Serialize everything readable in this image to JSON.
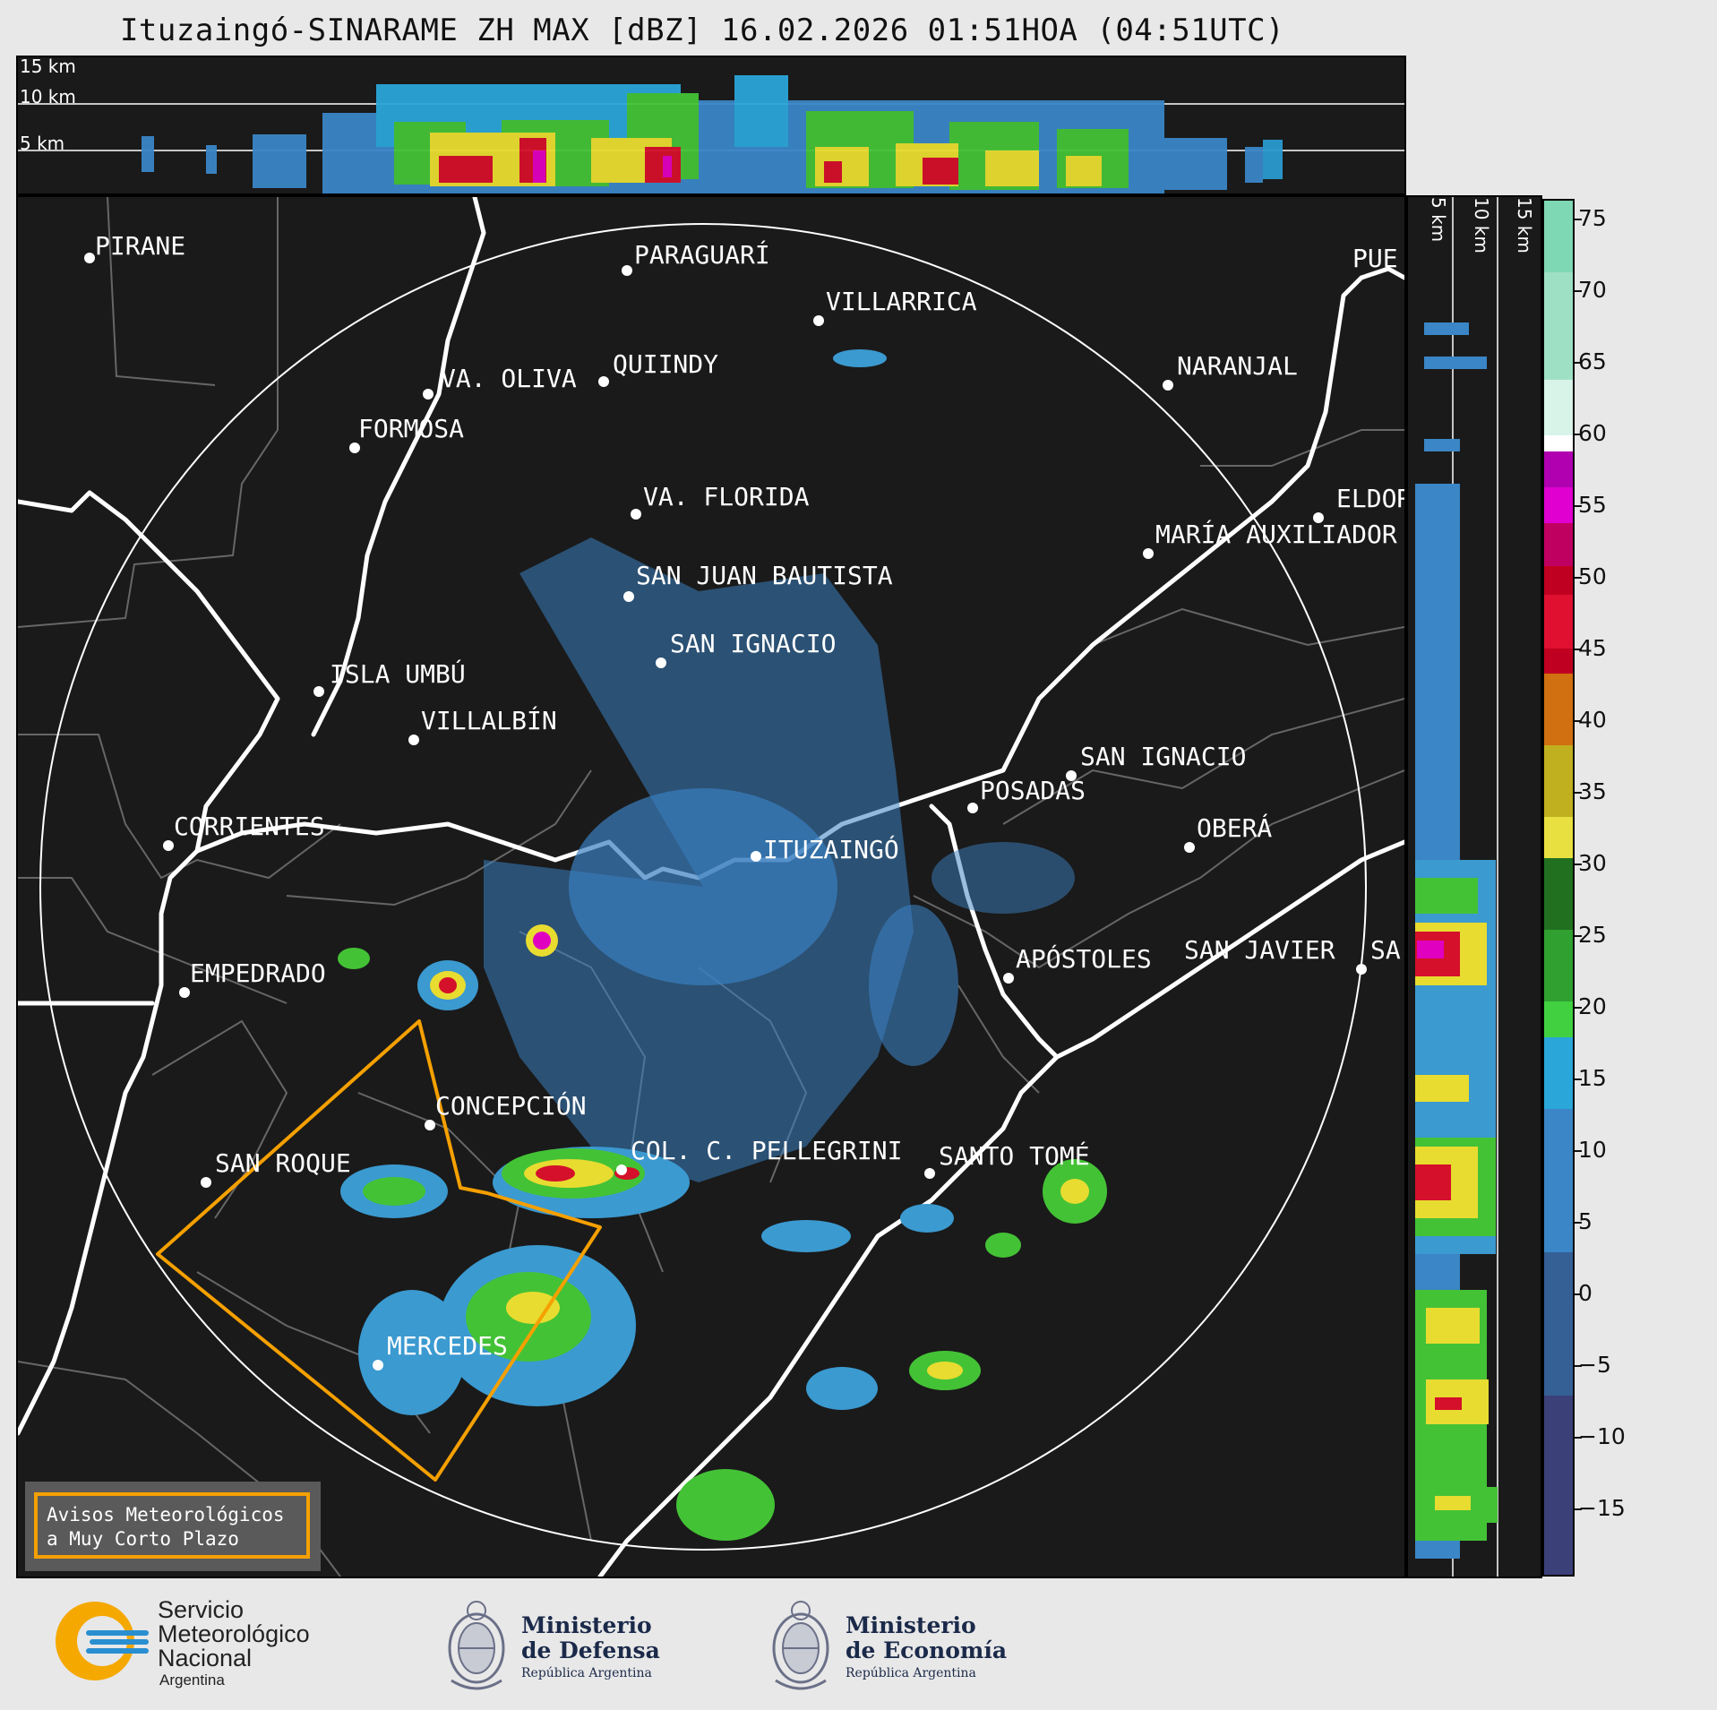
{
  "title": "Ituzaingó-SINARAME ZH MAX [dBZ] 16.02.2026 01:51HOA (04:51UTC)",
  "top_panel": {
    "altitudes": [
      "15 km",
      "10 km",
      "5 km"
    ]
  },
  "side_panel": {
    "altitudes": [
      "5 km",
      "10 km",
      "15 km"
    ]
  },
  "colorbar": {
    "unit": "dBZ",
    "ticks": [
      "75",
      "70",
      "65",
      "60",
      "55",
      "50",
      "45",
      "40",
      "35",
      "30",
      "25",
      "20",
      "15",
      "10",
      "5",
      "0",
      "−5",
      "−10",
      "−15"
    ]
  },
  "cities": [
    {
      "name": "PIRANE"
    },
    {
      "name": "PARAGUARÍ"
    },
    {
      "name": "VILLARRICA"
    },
    {
      "name": "QUIINDY"
    },
    {
      "name": "VA. OLIVA"
    },
    {
      "name": "NARANJAL"
    },
    {
      "name": "FORMOSA"
    },
    {
      "name": "VA. FLORIDA"
    },
    {
      "name": "ELDOR"
    },
    {
      "name": "MARÍA AUXILIADOR"
    },
    {
      "name": "SAN JUAN BAUTISTA"
    },
    {
      "name": "SAN IGNACIO"
    },
    {
      "name": "ISLA UMBÚ"
    },
    {
      "name": "VILLALBÍN"
    },
    {
      "name": "SAN IGNACIO"
    },
    {
      "name": "POSADAS"
    },
    {
      "name": "OBERÁ"
    },
    {
      "name": "CORRIENTES"
    },
    {
      "name": "ITUZAINGÓ"
    },
    {
      "name": "APÓSTOLES"
    },
    {
      "name": "SAN JAVIER"
    },
    {
      "name": "SA"
    },
    {
      "name": "EMPEDRADO"
    },
    {
      "name": "CONCEPCIÓN"
    },
    {
      "name": "COL. C. PELLEGRINI"
    },
    {
      "name": "SANTO TOMÉ"
    },
    {
      "name": "SAN ROQUE"
    },
    {
      "name": "MERCEDES"
    },
    {
      "name": "PUE"
    }
  ],
  "legend": {
    "line1": "Avisos Meteorológicos",
    "line2": "a Muy Corto Plazo"
  },
  "footer": {
    "smn": {
      "line1": "Servicio",
      "line2": "Meteorológico",
      "line3": "Nacional",
      "line4": "Argentina"
    },
    "defensa": {
      "line1": "Ministerio",
      "line2": "de Defensa",
      "line3": "República Argentina"
    },
    "economia": {
      "line1": "Ministerio",
      "line2": "de Economía",
      "line3": "República Argentina"
    }
  },
  "colors": {
    "background": "#1a1a1a",
    "warning_polygon": "#f5a000",
    "radar_base": "#3b7fc0"
  }
}
